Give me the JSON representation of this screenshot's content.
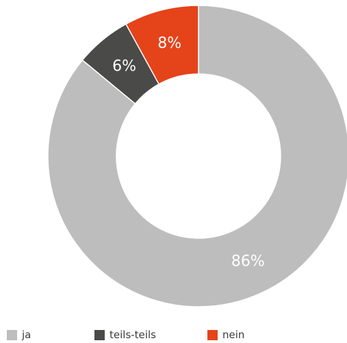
{
  "chart_data": {
    "type": "pie",
    "variant": "donut",
    "categories": [
      "ja",
      "teils-teils",
      "nein"
    ],
    "values": [
      86,
      6,
      8
    ],
    "labels": [
      "86%",
      "6%",
      "8%"
    ],
    "colors": [
      "#bdbdbd",
      "#4a4a48",
      "#e5431a"
    ],
    "start_angle_deg": 0,
    "direction": "clockwise",
    "legend_position": "bottom",
    "title": "",
    "xlabel": "",
    "ylabel": ""
  },
  "legend": {
    "items": [
      {
        "label": "ja",
        "color": "#bdbdbd"
      },
      {
        "label": "teils-teils",
        "color": "#4a4a48"
      },
      {
        "label": "nein",
        "color": "#e5431a"
      }
    ]
  }
}
